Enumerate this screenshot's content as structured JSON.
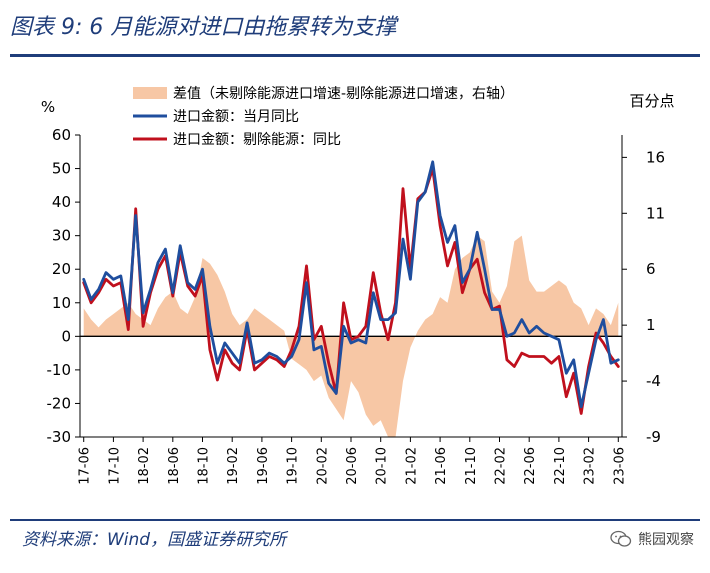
{
  "header": {
    "title": "图表 9:  6 月能源对进口由拖累转为支撑"
  },
  "footer": {
    "source": "资料来源：Wind，国盛证券研究所",
    "watermark": "熊园观察"
  },
  "colors": {
    "brand": "#1f3d7a",
    "diff_area": "#f7c7a5",
    "series_total": "#1f4e9e",
    "series_ex_energy": "#c0101d"
  },
  "chart_data": {
    "type": "line",
    "left_unit": "%",
    "right_unit": "百分点",
    "left_ylim": [
      -30,
      60
    ],
    "left_ticks": [
      -30,
      -20,
      -10,
      0,
      10,
      20,
      30,
      40,
      50,
      60
    ],
    "right_ylim": [
      -9,
      18
    ],
    "right_ticks": [
      -9,
      -4,
      1,
      6,
      11,
      16
    ],
    "x_tick_labels": [
      "17-06",
      "17-10",
      "18-02",
      "18-06",
      "18-10",
      "19-02",
      "19-06",
      "19-10",
      "20-02",
      "20-06",
      "20-10",
      "21-02",
      "21-06",
      "21-10",
      "22-02",
      "22-06",
      "22-10",
      "23-02",
      "23-06"
    ],
    "legend": [
      "差值（未剔除能源进口增速-剔除能源进口增速，右轴）",
      "进口金额：当月同比",
      "进口金额：剔除能源：同比"
    ],
    "x": [
      "17-06",
      "17-07",
      "17-08",
      "17-09",
      "17-10",
      "17-11",
      "17-12",
      "18-01",
      "18-02",
      "18-03",
      "18-04",
      "18-05",
      "18-06",
      "18-07",
      "18-08",
      "18-09",
      "18-10",
      "18-11",
      "18-12",
      "19-01",
      "19-02",
      "19-03",
      "19-04",
      "19-05",
      "19-06",
      "19-07",
      "19-08",
      "19-09",
      "19-10",
      "19-11",
      "19-12",
      "20-01",
      "20-02",
      "20-03",
      "20-04",
      "20-05",
      "20-06",
      "20-07",
      "20-08",
      "20-09",
      "20-10",
      "20-11",
      "20-12",
      "21-01",
      "21-02",
      "21-03",
      "21-04",
      "21-05",
      "21-06",
      "21-07",
      "21-08",
      "21-09",
      "21-10",
      "21-11",
      "21-12",
      "22-01",
      "22-02",
      "22-03",
      "22-04",
      "22-05",
      "22-06",
      "22-07",
      "22-08",
      "22-09",
      "22-10",
      "22-11",
      "22-12",
      "23-01",
      "23-02",
      "23-03",
      "23-04",
      "23-05",
      "23-06"
    ],
    "series": [
      {
        "name": "差值（未剔除能源进口增速-剔除能源进口增速，右轴）",
        "axis": "right",
        "kind": "area",
        "values": [
          2.5,
          1.5,
          0.8,
          1.5,
          2.0,
          2.5,
          3.0,
          2.0,
          1.5,
          1.0,
          2.5,
          3.5,
          4.0,
          2.5,
          2.0,
          3.5,
          7.0,
          6.5,
          5.5,
          4.0,
          2.0,
          1.0,
          1.5,
          2.5,
          2.0,
          1.5,
          1.0,
          0.5,
          -2.0,
          -2.5,
          -3.0,
          -4.0,
          -3.5,
          -5.5,
          -6.5,
          -7.5,
          -4.0,
          -5.0,
          -7.0,
          -8.0,
          -7.5,
          -9.0,
          -9.0,
          -4.0,
          -1.0,
          0.5,
          1.5,
          2.0,
          3.5,
          3.0,
          6.0,
          7.0,
          7.5,
          9.0,
          8.5,
          4.0,
          3.0,
          4.5,
          8.5,
          9.0,
          5.0,
          4.0,
          4.0,
          4.5,
          5.0,
          4.5,
          3.0,
          2.5,
          1.0,
          2.5,
          2.0,
          1.0,
          3.0
        ]
      },
      {
        "name": "进口金额：当月同比",
        "axis": "left",
        "kind": "line",
        "values": [
          17,
          11,
          14,
          19,
          17,
          18,
          5,
          36,
          7,
          14,
          22,
          26,
          13,
          27,
          16,
          14,
          20,
          3,
          -8,
          -2,
          -5,
          -8,
          4,
          -8,
          -7,
          -5,
          -6,
          -8,
          -6,
          -1,
          16,
          -4,
          -3,
          -14,
          -17,
          3,
          -2,
          -1,
          -2,
          13,
          5,
          5,
          7,
          29,
          17,
          40,
          43,
          52,
          36,
          28,
          33,
          16,
          20,
          31,
          20,
          8,
          8,
          0,
          1,
          5,
          1,
          3,
          1,
          0,
          -1,
          -11,
          -7,
          -21,
          -11,
          -1,
          5,
          -8,
          -7
        ]
      },
      {
        "name": "进口金额：剔除能源：同比",
        "axis": "left",
        "kind": "line",
        "values": [
          16,
          10,
          13,
          17,
          15,
          16,
          2,
          38,
          3,
          13,
          20,
          24,
          12,
          25,
          15,
          12,
          18,
          -4,
          -13,
          -4,
          -8,
          -10,
          2,
          -10,
          -8,
          -6,
          -7,
          -9,
          -4,
          3,
          21,
          -1,
          3,
          -8,
          -17,
          10,
          -1,
          0,
          3,
          19,
          7,
          -1,
          10,
          44,
          20,
          41,
          43,
          50,
          33,
          21,
          28,
          13,
          20,
          23,
          13,
          8,
          9,
          -7,
          -9,
          -5,
          -6,
          -6,
          -6,
          -8,
          -6,
          -18,
          -11,
          -23,
          -9,
          1,
          -2,
          -6,
          -9
        ]
      }
    ]
  }
}
